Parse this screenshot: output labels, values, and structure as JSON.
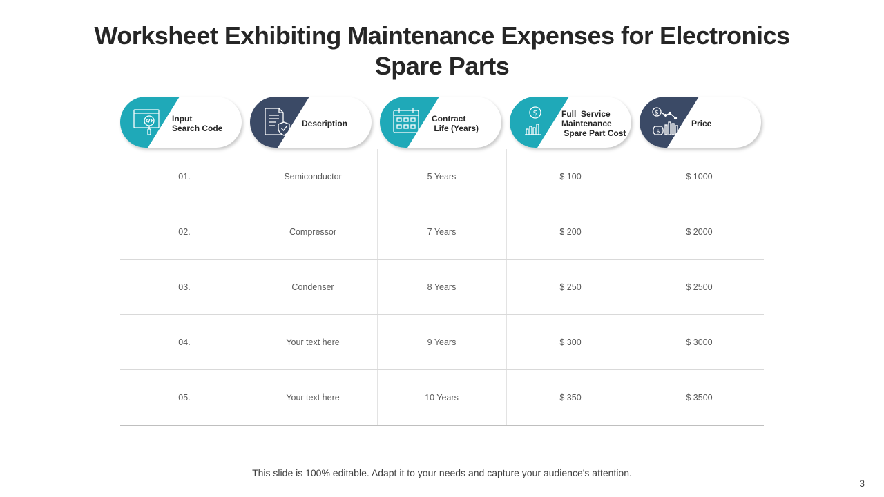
{
  "slide": {
    "title_line1": "Worksheet Exhibiting Maintenance Expenses for Electronics",
    "title_line2": "Spare Parts",
    "footer": "This slide is 100% editable. Adapt it to your needs and capture your audience's attention.",
    "page_number": "3"
  },
  "colors": {
    "teal": "#1fa9b8",
    "navy": "#3b4a66"
  },
  "headers": [
    {
      "label": "Input\nSearch Code",
      "icon": "code-search-icon",
      "color": "teal"
    },
    {
      "label": "Description",
      "icon": "document-shield-icon",
      "color": "navy"
    },
    {
      "label": "Contract\n Life (Years)",
      "icon": "calendar-icon",
      "color": "teal"
    },
    {
      "label": "Full  Service\nMaintenance\n Spare Part Cost",
      "icon": "dollar-chart-icon",
      "color": "teal"
    },
    {
      "label": "Price",
      "icon": "money-chart-icon",
      "color": "navy"
    }
  ],
  "rows": [
    [
      "01.",
      "Semiconductor",
      "5 Years",
      "$ 100",
      "$ 1000"
    ],
    [
      "02.",
      "Compressor",
      "7 Years",
      "$ 200",
      "$ 2000"
    ],
    [
      "03.",
      "Condenser",
      "8 Years",
      "$ 250",
      "$ 2500"
    ],
    [
      "04.",
      "Your text here",
      "9 Years",
      "$ 300",
      "$ 3000"
    ],
    [
      "05.",
      "Your text here",
      "10 Years",
      "$ 350",
      "$ 3500"
    ]
  ]
}
